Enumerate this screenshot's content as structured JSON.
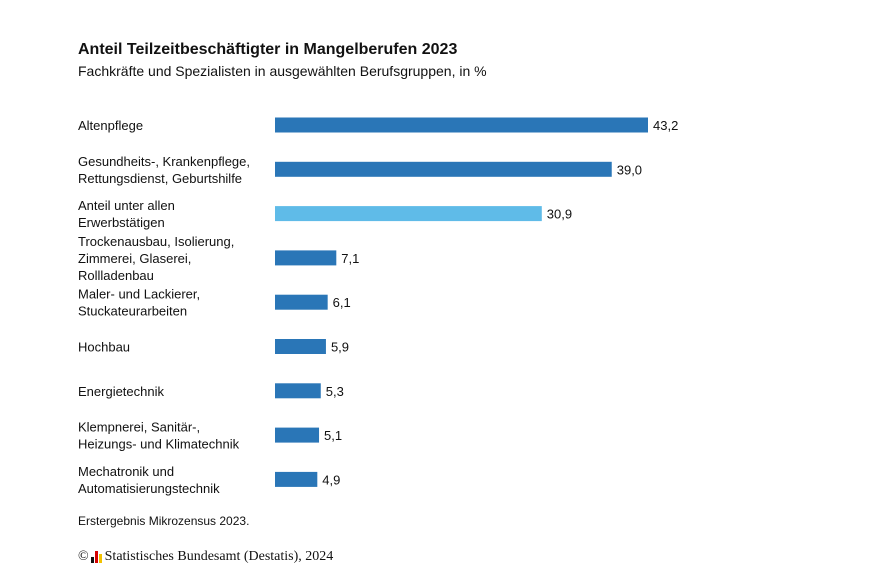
{
  "colors": {
    "bar": "#2a76b7",
    "highlight": "#5fbbe8"
  },
  "footnote": "Erstergebnis Mikrozensus 2023.",
  "copyright": {
    "symbol": "©",
    "text": "Statistisches Bundesamt (Destatis), 2024"
  },
  "chart_data": {
    "type": "bar",
    "orientation": "horizontal",
    "title": "Anteil Teilzeitbeschäftigter in Mangelberufen 2023",
    "subtitle": "Fachkräfte und Spezialisten in ausgewählten Berufsgruppen, in %",
    "categories": [
      [
        "Altenpflege"
      ],
      [
        "Gesundheits-, Krankenpflege,",
        "Rettungsdienst, Geburtshilfe"
      ],
      [
        "Anteil unter allen",
        "Erwerbstätigen"
      ],
      [
        "Trockenausbau, Isolierung,",
        "Zimmerei, Glaserei,",
        "Rollladenbau"
      ],
      [
        "Maler- und Lackierer,",
        "Stuckateurarbeiten"
      ],
      [
        "Hochbau"
      ],
      [
        "Energietechnik"
      ],
      [
        "Klempnerei, Sanitär-,",
        "Heizungs- und Klimatechnik"
      ],
      [
        "Mechatronik und",
        "Automatisierungstechnik"
      ]
    ],
    "values": [
      43.2,
      39.0,
      30.9,
      7.1,
      6.1,
      5.9,
      5.3,
      5.1,
      4.9
    ],
    "value_labels": [
      "43,2",
      "39,0",
      "30,9",
      "7,1",
      "6,1",
      "5,9",
      "5,3",
      "5,1",
      "4,9"
    ],
    "highlight_index": 2,
    "xlim": [
      0,
      43.2
    ],
    "grid": false,
    "legend": "none"
  }
}
